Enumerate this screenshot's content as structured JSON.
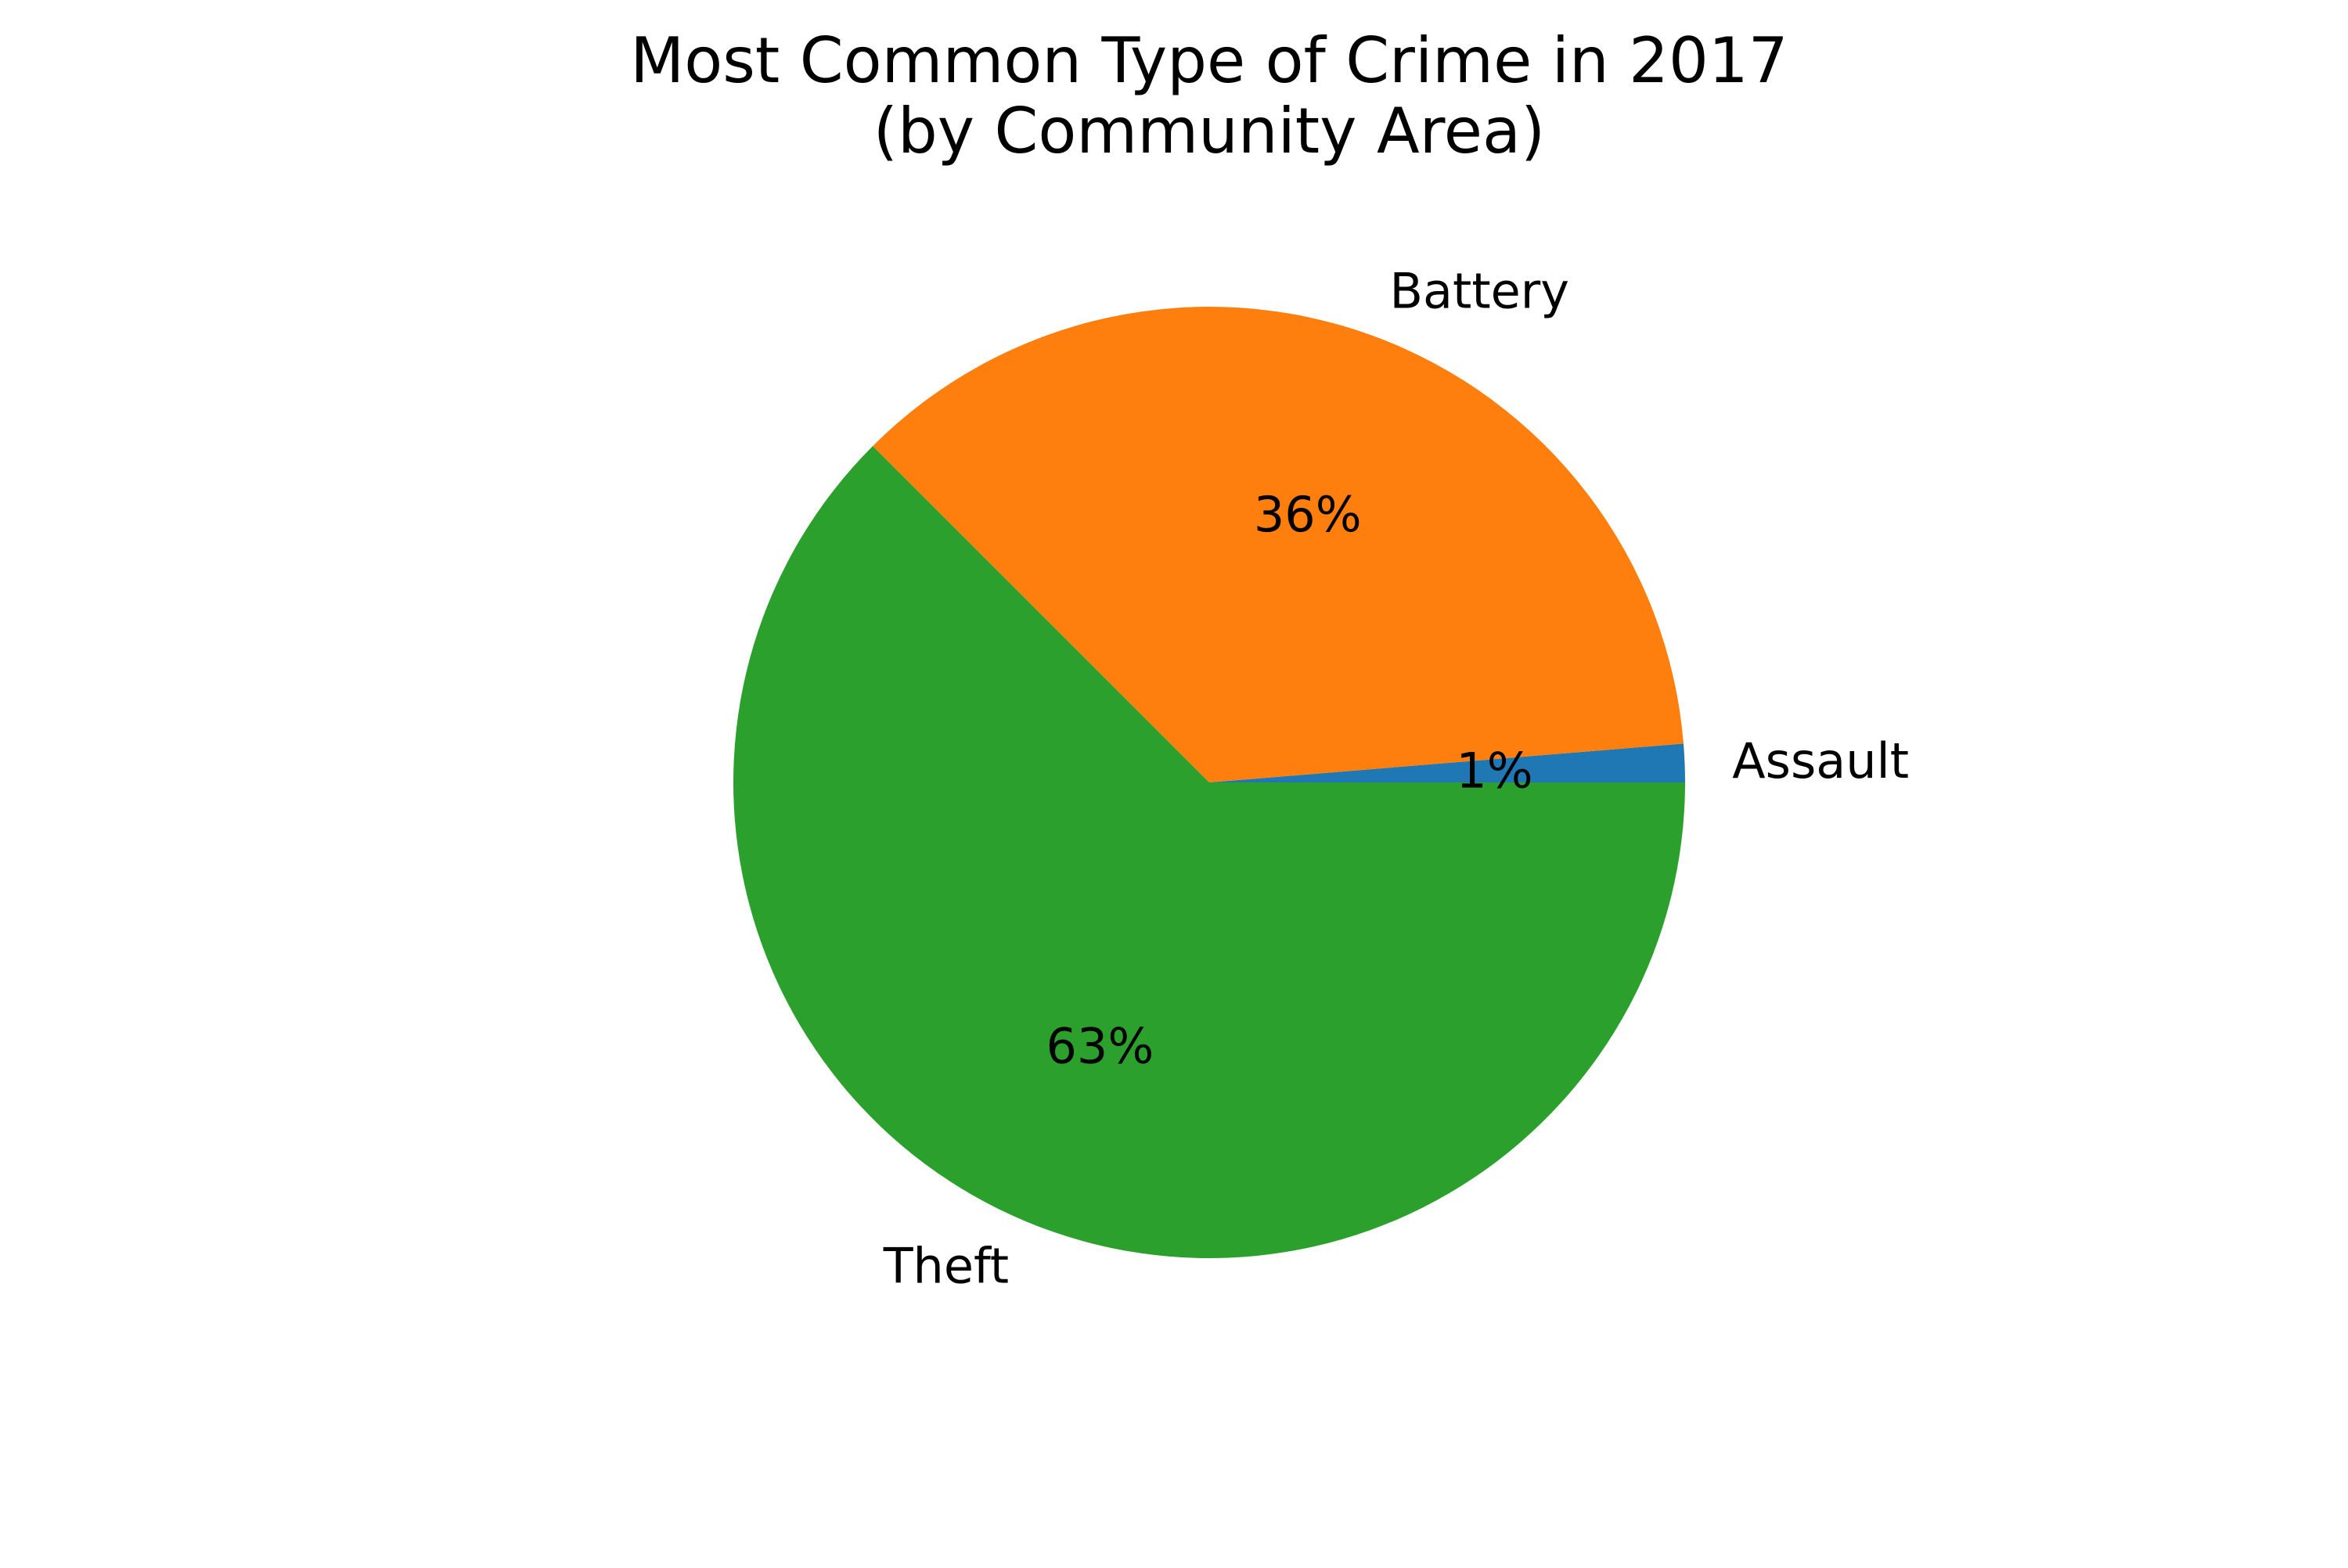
{
  "chart_data": {
    "type": "pie",
    "title": "Most Common Type of Crime in 2017",
    "subtitle": "(by Community Area)",
    "start_angle_deg": 0,
    "direction": "counterclockwise",
    "slices": [
      {
        "label": "Assault",
        "value": 1.3,
        "pct_label": "1%",
        "color": "#1f77b4"
      },
      {
        "label": "Battery",
        "value": 36.2,
        "pct_label": "36%",
        "color": "#ff7f0e"
      },
      {
        "label": "Theft",
        "value": 62.5,
        "pct_label": "63%",
        "color": "#2ca02c"
      }
    ],
    "legend": "none",
    "grid": false
  }
}
